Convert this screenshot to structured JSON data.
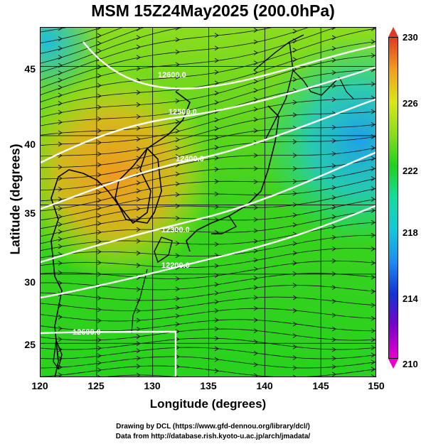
{
  "title": "MSM 15Z24May2025 (200.0hPa)",
  "xlabel": "Longitude (degrees)",
  "ylabel": "Latitude  (degrees)",
  "x_ticks": [
    "120",
    "125",
    "130",
    "135",
    "140",
    "145",
    "150"
  ],
  "y_ticks": [
    "45",
    "40",
    "35",
    "30",
    "25"
  ],
  "colorbar": {
    "ticks": [
      "230",
      "226",
      "222",
      "218",
      "214",
      "210"
    ],
    "min": 210,
    "max": 230,
    "colors": [
      "#e800d0",
      "#7a00c8",
      "#1432d2",
      "#1e8cf0",
      "#14c8d8",
      "#14dca0",
      "#1ed21e",
      "#8cdc1e",
      "#dce614",
      "#f0a01e",
      "#e03a24"
    ]
  },
  "map": {
    "lon_range": [
      120,
      150
    ],
    "lat_range": [
      22.5,
      47.8
    ],
    "contour_labels": [
      "12600.0",
      "12500.0",
      "12400.0",
      "12300.0",
      "12200.0"
    ]
  },
  "credits": {
    "line1": "Drawing by DCL (https://www.gfd-dennou.org/library/dcl/)",
    "line2": "Data from http://database.rish.kyoto-u.ac.jp/arch/jmadata/"
  }
}
